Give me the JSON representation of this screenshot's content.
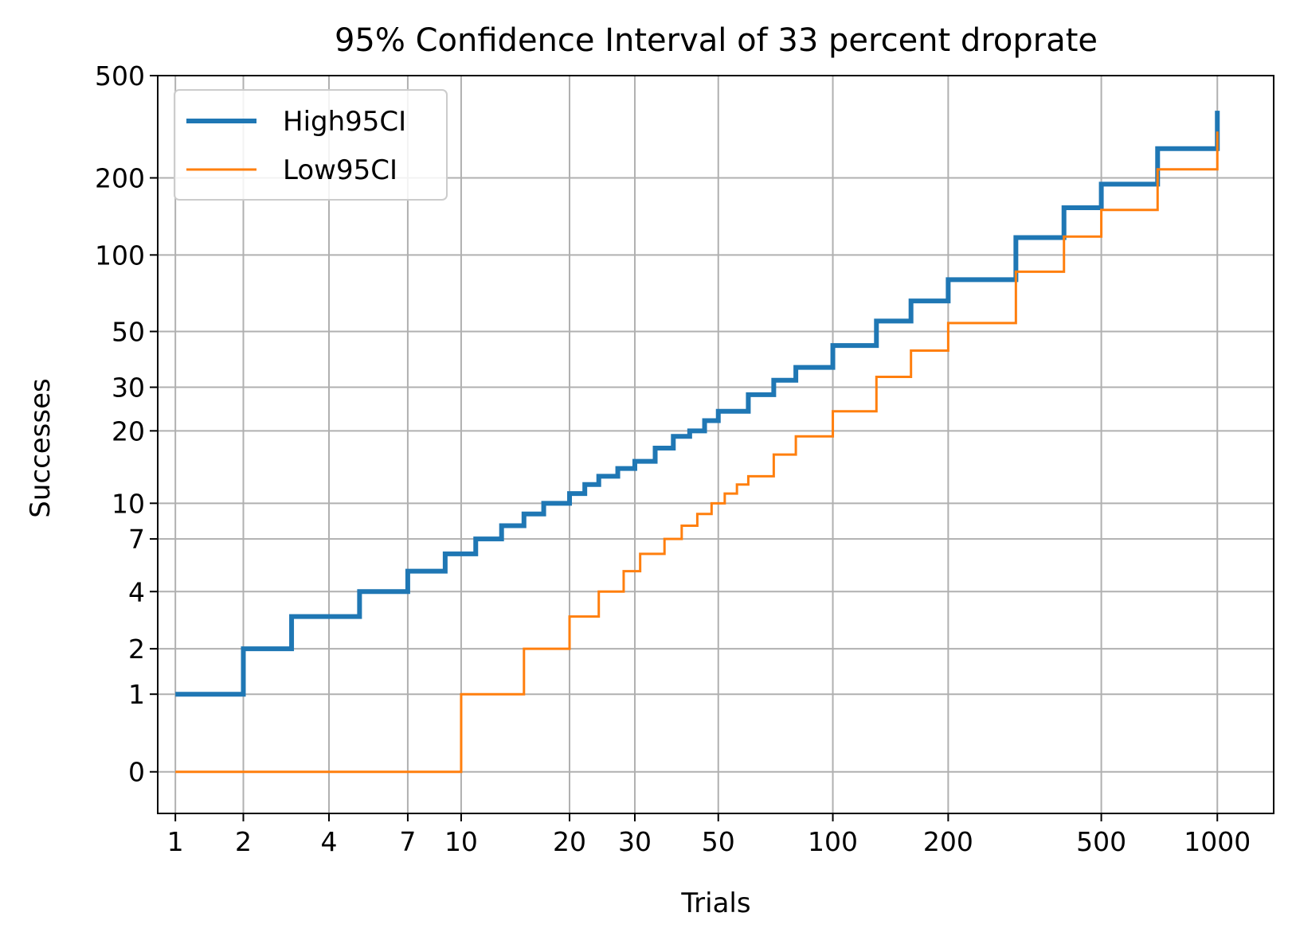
{
  "chart_data": {
    "type": "line",
    "title": "95% Confidence Interval of 33 percent droprate",
    "xlabel": "Trials",
    "ylabel": "Successes",
    "x_scale": "symlog",
    "y_scale": "symlog",
    "xlim": [
      0.8,
      1400
    ],
    "ylim": [
      -0.45,
      500
    ],
    "xticks": [
      1,
      2,
      4,
      7,
      10,
      20,
      30,
      50,
      100,
      200,
      500,
      1000
    ],
    "xtick_labels": [
      "1",
      "2",
      "4",
      "7",
      "10",
      "20",
      "30",
      "50",
      "100",
      "200",
      "500",
      "1000"
    ],
    "yticks": [
      0,
      1,
      2,
      4,
      7,
      10,
      20,
      30,
      50,
      100,
      200,
      500
    ],
    "ytick_labels": [
      "0",
      "1",
      "2",
      "4",
      "7",
      "10",
      "20",
      "30",
      "50",
      "100",
      "200",
      "500"
    ],
    "grid": true,
    "legend_position": "top-left",
    "series": [
      {
        "name": "High95CI",
        "color": "#1f77b4",
        "step": "post",
        "x": [
          1,
          2,
          3,
          5,
          7,
          9,
          11,
          13,
          15,
          17,
          20,
          22,
          24,
          27,
          30,
          34,
          38,
          42,
          46,
          50,
          60,
          70,
          80,
          100,
          130,
          160,
          200,
          300,
          400,
          500,
          700,
          1000
        ],
        "y": [
          1,
          2,
          3,
          4,
          5,
          6,
          7,
          8,
          9,
          10,
          11,
          12,
          13,
          14,
          15,
          17,
          19,
          20,
          22,
          24,
          28,
          32,
          36,
          44,
          55,
          66,
          80,
          117,
          153,
          189,
          260,
          365
        ]
      },
      {
        "name": "Low95CI",
        "color": "#ff7f0e",
        "step": "post",
        "x": [
          1,
          10,
          15,
          20,
          24,
          28,
          31,
          36,
          40,
          44,
          48,
          52,
          56,
          60,
          70,
          80,
          100,
          130,
          160,
          200,
          300,
          400,
          500,
          700,
          1000
        ],
        "y": [
          0,
          1,
          2,
          3,
          4,
          5,
          6,
          7,
          8,
          9,
          10,
          11,
          12,
          13,
          16,
          19,
          24,
          33,
          42,
          54,
          86,
          118,
          150,
          216,
          303
        ]
      }
    ]
  }
}
